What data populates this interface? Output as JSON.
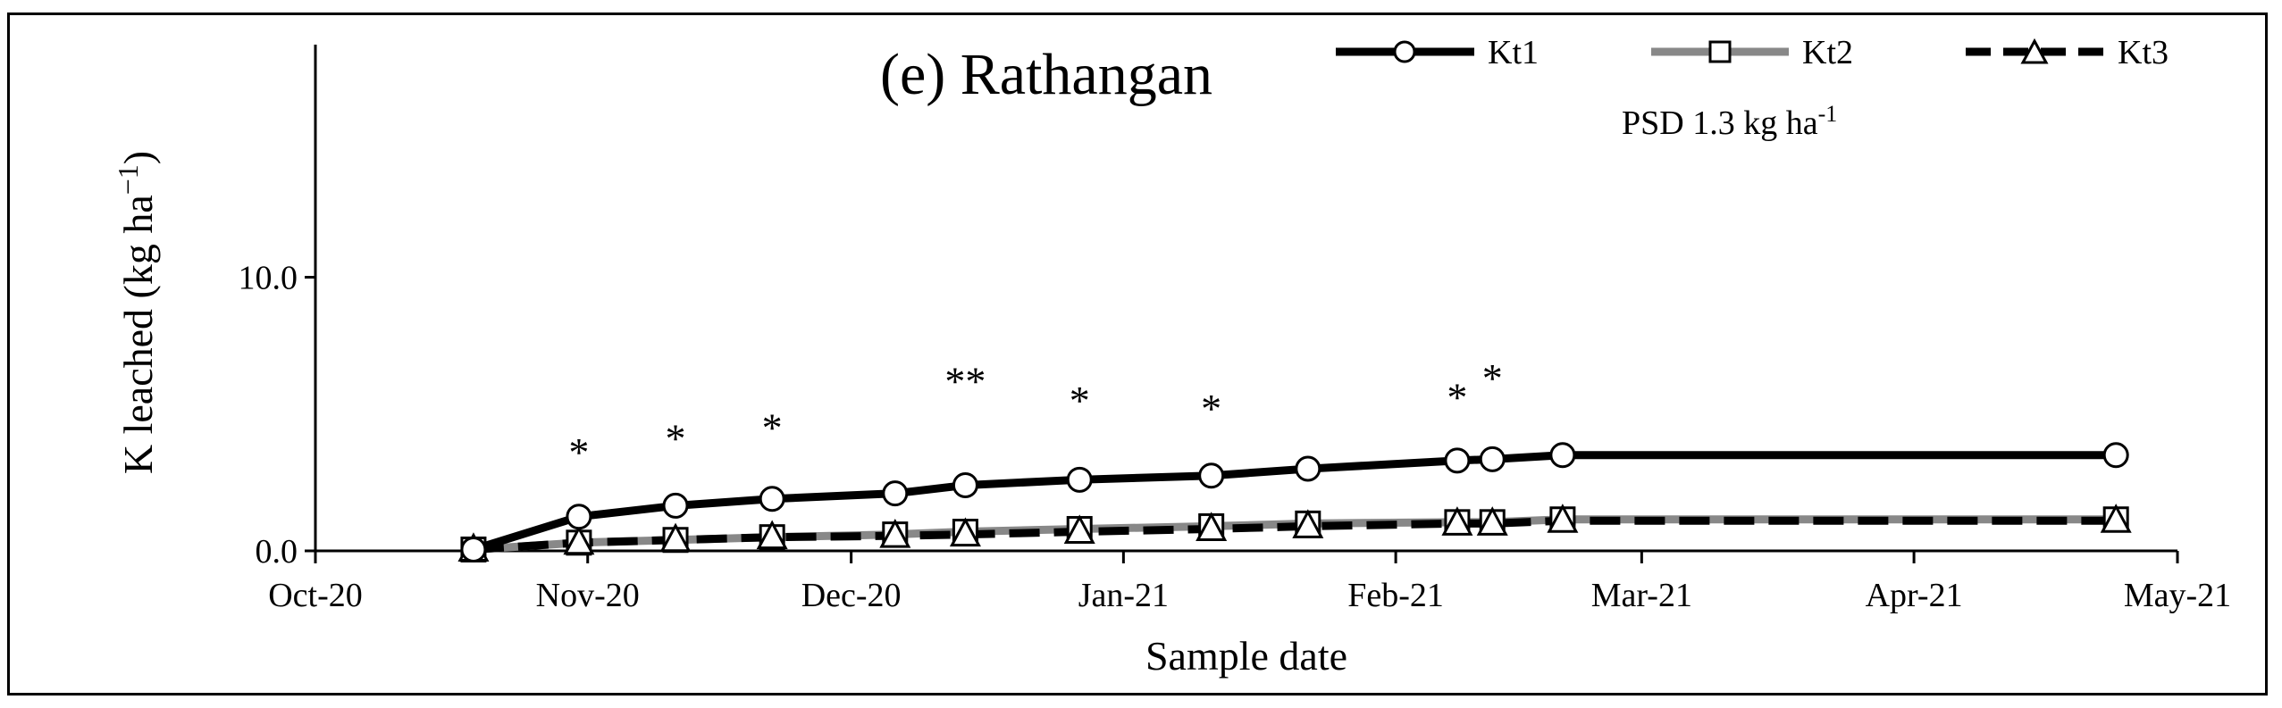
{
  "chart_data": {
    "type": "line",
    "title": "(e) Rathangan",
    "annotation": "PSD 1.3 kg ha",
    "annotation_superscript": "-1",
    "xlabel": "Sample date",
    "ylabel": "K leached (kg ha",
    "ylabel_superscript": "−1",
    "ylabel_suffix": ")",
    "x_ticks": [
      {
        "date": "2020-10-01",
        "label": "Oct-20"
      },
      {
        "date": "2020-11-01",
        "label": "Nov-20"
      },
      {
        "date": "2020-12-01",
        "label": "Dec-20"
      },
      {
        "date": "2021-01-01",
        "label": "Jan-21"
      },
      {
        "date": "2021-02-01",
        "label": "Feb-21"
      },
      {
        "date": "2021-03-01",
        "label": "Mar-21"
      },
      {
        "date": "2021-04-01",
        "label": "Apr-21"
      },
      {
        "date": "2021-05-01",
        "label": "May-21"
      }
    ],
    "xlim": [
      "2020-10-01",
      "2021-05-01"
    ],
    "ylim": [
      0,
      18.5
    ],
    "y_ticks": [
      {
        "value": 0,
        "label": "0.0"
      },
      {
        "value": 10,
        "label": "10.0"
      }
    ],
    "grid": false,
    "legend_position": "top-right",
    "x": [
      "2020-10-19",
      "2020-10-31",
      "2020-11-11",
      "2020-11-22",
      "2020-12-06",
      "2020-12-14",
      "2020-12-27",
      "2021-01-11",
      "2021-01-22",
      "2021-02-08",
      "2021-02-12",
      "2021-02-20",
      "2021-04-24"
    ],
    "series": [
      {
        "name": "Kt1",
        "color": "#000000",
        "marker": "circle",
        "dash": "solid",
        "values": [
          0.05,
          1.25,
          1.65,
          1.9,
          2.1,
          2.4,
          2.6,
          2.75,
          3.0,
          3.3,
          3.35,
          3.5,
          3.5
        ]
      },
      {
        "name": "Kt2",
        "color": "#888888",
        "marker": "square",
        "dash": "solid",
        "values": [
          0.05,
          0.3,
          0.4,
          0.5,
          0.6,
          0.7,
          0.8,
          0.9,
          1.0,
          1.05,
          1.05,
          1.15,
          1.15
        ]
      },
      {
        "name": "Kt3",
        "color": "#000000",
        "marker": "triangle",
        "dash": "dashed",
        "values": [
          0.05,
          0.3,
          0.4,
          0.5,
          0.55,
          0.6,
          0.7,
          0.8,
          0.9,
          1.0,
          1.0,
          1.1,
          1.1
        ]
      }
    ],
    "significance_marks": [
      {
        "date": "2020-10-31",
        "label": "*",
        "y": 3.1
      },
      {
        "date": "2020-11-11",
        "label": "*",
        "y": 3.6
      },
      {
        "date": "2020-11-22",
        "label": "*",
        "y": 4.0
      },
      {
        "date": "2020-12-14",
        "label": "**",
        "y": 5.7
      },
      {
        "date": "2020-12-27",
        "label": "*",
        "y": 5.0
      },
      {
        "date": "2021-01-11",
        "label": "*",
        "y": 4.7
      },
      {
        "date": "2021-02-08",
        "label": "*",
        "y": 5.1
      },
      {
        "date": "2021-02-12",
        "label": "*",
        "y": 5.8
      }
    ]
  }
}
